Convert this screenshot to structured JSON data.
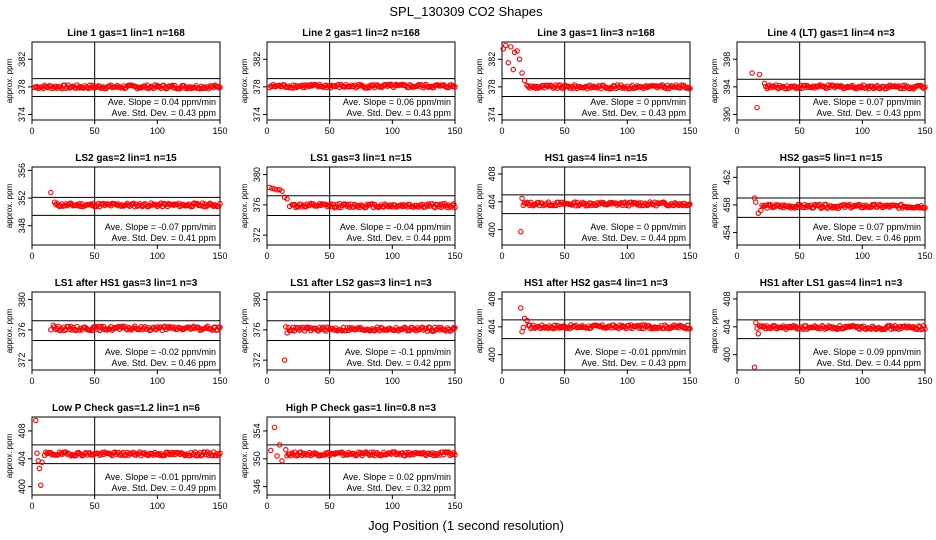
{
  "figure": {
    "title": "SPL_130309  CO2 Shapes",
    "xlabel": "Jog Position (1 second resolution)"
  },
  "chart_data": [
    {
      "type": "scatter",
      "title": "Line 1 gas=1 lin=1 n=168",
      "ylabel": "approx. ppm",
      "xlim": [
        0,
        150
      ],
      "ylim": [
        373.2,
        384.5
      ],
      "yticks": [
        374,
        378,
        382
      ],
      "xticks": [
        0,
        50,
        100,
        150
      ],
      "hlines": [
        379.2,
        376.6
      ],
      "vline": 50,
      "slope_text": "Ave. Slope = 0.04  ppm/min",
      "std_text": "Ave. Std. Dev. = 0.43  ppm",
      "points": {
        "x": [
          2,
          150
        ],
        "y": [
          377.9,
          378.0
        ]
      },
      "marker_color": "#ff0000",
      "grid": false
    },
    {
      "type": "scatter",
      "title": "Line 2 gas=1 lin=2 n=168",
      "ylabel": "approx. ppm",
      "xlim": [
        0,
        150
      ],
      "ylim": [
        373.2,
        384.5
      ],
      "yticks": [
        374,
        378,
        382
      ],
      "xticks": [
        0,
        50,
        100,
        150
      ],
      "hlines": [
        379.2,
        376.6
      ],
      "vline": 50,
      "slope_text": "Ave. Slope = 0.06  ppm/min",
      "std_text": "Ave. Std. Dev. = 0.43  ppm",
      "points": {
        "x": [
          2,
          150
        ],
        "y": [
          377.9,
          378.1
        ]
      },
      "marker_color": "#ff0000",
      "grid": false
    },
    {
      "type": "scatter",
      "title": "Line 3 gas=1 lin=3 n=168",
      "ylabel": "approx. ppm",
      "xlim": [
        0,
        150
      ],
      "ylim": [
        373.2,
        384.5
      ],
      "yticks": [
        374,
        378,
        382
      ],
      "xticks": [
        0,
        50,
        100,
        150
      ],
      "hlines": [
        379.2,
        376.6
      ],
      "vline": 50,
      "slope_text": "Ave. Slope = 0  ppm/min",
      "std_text": "Ave. Std. Dev. = 0.43  ppm",
      "points": {
        "x": [
          1,
          3,
          5,
          7,
          9,
          10,
          12,
          14,
          16,
          18,
          20,
          150
        ],
        "y": [
          383.5,
          384.0,
          381.5,
          383.8,
          380.5,
          383.0,
          383.2,
          382.0,
          380.0,
          378.9,
          378.2,
          378.0
        ]
      },
      "marker_color": "#ff0000",
      "grid": false
    },
    {
      "type": "scatter",
      "title": "Line 4 (LT) gas=1 lin=4 n=3",
      "ylabel": "approx. ppm",
      "xlim": [
        0,
        150
      ],
      "ylim": [
        389.2,
        400.5
      ],
      "yticks": [
        390,
        394,
        398
      ],
      "xticks": [
        0,
        50,
        100,
        150
      ],
      "hlines": [
        395.1,
        392.6
      ],
      "vline": 50,
      "slope_text": "Ave. Slope = 0.07  ppm/min",
      "std_text": "Ave. Std. Dev. = 0.43  ppm",
      "points": {
        "x": [
          12,
          16,
          18,
          22,
          150
        ],
        "y": [
          396.0,
          391.0,
          395.8,
          394.5,
          394.0
        ]
      },
      "marker_color": "#ff0000",
      "grid": false
    },
    {
      "type": "scatter",
      "title": "LS2 gas=2 lin=1 n=15",
      "ylabel": "approx. ppm",
      "xlim": [
        0,
        150
      ],
      "ylim": [
        345.2,
        356.5
      ],
      "yticks": [
        348,
        352,
        356
      ],
      "xticks": [
        0,
        50,
        100,
        150
      ],
      "hlines": [
        352.1,
        349.5
      ],
      "vline": 50,
      "slope_text": "Ave. Slope = -0.07  ppm/min",
      "std_text": "Ave. Std. Dev. = 0.41  ppm",
      "points": {
        "x": [
          15,
          18,
          150
        ],
        "y": [
          352.8,
          351.4,
          351.0
        ]
      },
      "marker_color": "#ff0000",
      "grid": false
    },
    {
      "type": "scatter",
      "title": "LS1 gas=3 lin=1 n=15",
      "ylabel": "approx. ppm",
      "xlim": [
        0,
        150
      ],
      "ylim": [
        370.7,
        381.0
      ],
      "yticks": [
        372,
        376,
        380
      ],
      "xticks": [
        0,
        50,
        100,
        150
      ],
      "hlines": [
        377.2,
        374.6
      ],
      "vline": 50,
      "slope_text": "Ave. Slope = -0.04  ppm/min",
      "std_text": "Ave. Std. Dev. = 0.44  ppm",
      "points": {
        "x": [
          2,
          4,
          6,
          8,
          10,
          12,
          14,
          16,
          18,
          20,
          150
        ],
        "y": [
          378.3,
          378.2,
          378.1,
          378.0,
          378.0,
          377.8,
          377.0,
          376.8,
          375.8,
          376.0,
          375.9
        ]
      },
      "marker_color": "#ff0000",
      "grid": false
    },
    {
      "type": "scatter",
      "title": "HS1 gas=4 lin=1 n=15",
      "ylabel": "approx. ppm",
      "xlim": [
        0,
        150
      ],
      "ylim": [
        397.8,
        409.0
      ],
      "yticks": [
        400,
        404,
        408
      ],
      "xticks": [
        0,
        50,
        100,
        150
      ],
      "hlines": [
        405.0,
        402.3
      ],
      "vline": 50,
      "slope_text": "Ave. Slope = 0  ppm/min",
      "std_text": "Ave. Std. Dev. = 0.44  ppm",
      "points": {
        "x": [
          15,
          16,
          17,
          150
        ],
        "y": [
          399.7,
          404.5,
          403.5,
          403.7
        ]
      },
      "marker_color": "#ff0000",
      "grid": false
    },
    {
      "type": "scatter",
      "title": "HS2 gas=5 lin=1 n=15",
      "ylabel": "approx. ppm",
      "xlim": [
        0,
        150
      ],
      "ylim": [
        452.2,
        463.5
      ],
      "yticks": [
        454,
        458,
        462
      ],
      "xticks": [
        0,
        50,
        100,
        150
      ],
      "hlines": [
        459.0,
        456.2
      ],
      "vline": 50,
      "slope_text": "Ave. Slope = 0.07  ppm/min",
      "std_text": "Ave. Std. Dev. = 0.46  ppm",
      "points": {
        "x": [
          14,
          15,
          17,
          19,
          150
        ],
        "y": [
          459.0,
          458.4,
          456.8,
          457.2,
          457.8
        ]
      },
      "marker_color": "#ff0000",
      "grid": false
    },
    {
      "type": "scatter",
      "title": "LS1 after HS1 gas=3 lin=1 n=3",
      "ylabel": "approx. ppm",
      "xlim": [
        0,
        150
      ],
      "ylim": [
        370.7,
        381.0
      ],
      "yticks": [
        372,
        376,
        380
      ],
      "xticks": [
        0,
        50,
        100,
        150
      ],
      "hlines": [
        377.2,
        374.6
      ],
      "vline": 50,
      "slope_text": "Ave. Slope = -0.02  ppm/min",
      "std_text": "Ave. Std. Dev. = 0.46  ppm",
      "points": {
        "x": [
          15,
          17,
          150
        ],
        "y": [
          376.0,
          376.6,
          376.2
        ]
      },
      "marker_color": "#ff0000",
      "grid": false
    },
    {
      "type": "scatter",
      "title": "LS1 after LS2 gas=3 lin=1 n=3",
      "ylabel": "approx. ppm",
      "xlim": [
        0,
        150
      ],
      "ylim": [
        370.7,
        381.0
      ],
      "yticks": [
        372,
        376,
        380
      ],
      "xticks": [
        0,
        50,
        100,
        150
      ],
      "hlines": [
        377.2,
        374.6
      ],
      "vline": 50,
      "slope_text": "Ave. Slope = -0.1  ppm/min",
      "std_text": "Ave. Std. Dev. = 0.42  ppm",
      "points": {
        "x": [
          14,
          15,
          16,
          150
        ],
        "y": [
          372.0,
          376.4,
          375.6,
          376.1
        ]
      },
      "marker_color": "#ff0000",
      "grid": false
    },
    {
      "type": "scatter",
      "title": "HS1 after HS2 gas=4 lin=1 n=3",
      "ylabel": "approx. ppm",
      "xlim": [
        0,
        150
      ],
      "ylim": [
        397.8,
        409.0
      ],
      "yticks": [
        400,
        404,
        408
      ],
      "xticks": [
        0,
        50,
        100,
        150
      ],
      "hlines": [
        405.0,
        402.3
      ],
      "vline": 50,
      "slope_text": "Ave. Slope = -0.01  ppm/min",
      "std_text": "Ave. Std. Dev. = 0.43  ppm",
      "points": {
        "x": [
          15,
          16,
          17,
          18,
          20,
          150
        ],
        "y": [
          406.7,
          403.3,
          403.9,
          405.2,
          404.9,
          404.0
        ]
      },
      "marker_color": "#ff0000",
      "grid": false
    },
    {
      "type": "scatter",
      "title": "HS1 after LS1 gas=4 lin=1 n=3",
      "ylabel": "approx. ppm",
      "xlim": [
        0,
        150
      ],
      "ylim": [
        397.8,
        409.0
      ],
      "yticks": [
        400,
        404,
        408
      ],
      "xticks": [
        0,
        50,
        100,
        150
      ],
      "hlines": [
        405.0,
        402.3
      ],
      "vline": 50,
      "slope_text": "Ave. Slope = 0.09  ppm/min",
      "std_text": "Ave. Std. Dev. = 0.44  ppm",
      "points": {
        "x": [
          14,
          15,
          16,
          17,
          150
        ],
        "y": [
          398.2,
          404.6,
          403.8,
          403.0,
          403.9
        ]
      },
      "marker_color": "#ff0000",
      "grid": false
    },
    {
      "type": "scatter",
      "title": "Low P Check gas=1.2 lin=1 n=6",
      "ylabel": "approx. ppm",
      "xlim": [
        0,
        150
      ],
      "ylim": [
        398.8,
        410.0
      ],
      "yticks": [
        400,
        404,
        408
      ],
      "xticks": [
        0,
        50,
        100,
        150
      ],
      "hlines": [
        406.0,
        403.3
      ],
      "vline": 50,
      "slope_text": "Ave. Slope = -0.01  ppm/min",
      "std_text": "Ave. Std. Dev. = 0.49  ppm",
      "points": {
        "x": [
          3,
          4,
          5,
          6,
          7,
          8,
          10,
          150
        ],
        "y": [
          409.5,
          404.8,
          403.7,
          402.6,
          400.2,
          403.5,
          404.5,
          404.7
        ]
      },
      "marker_color": "#ff0000",
      "grid": false
    },
    {
      "type": "scatter",
      "title": "High P Check gas=1 lin=0.8 n=3",
      "ylabel": "approx. ppm",
      "xlim": [
        0,
        150
      ],
      "ylim": [
        344.8,
        356.0
      ],
      "yticks": [
        346,
        350,
        354
      ],
      "xticks": [
        0,
        50,
        100,
        150
      ],
      "hlines": [
        352.0,
        349.3
      ],
      "vline": 50,
      "slope_text": "Ave. Slope = 0.02  ppm/min",
      "std_text": "Ave. Std. Dev. = 0.32  ppm",
      "points": {
        "x": [
          3,
          6,
          8,
          10,
          12,
          15,
          150
        ],
        "y": [
          351.2,
          354.5,
          350.4,
          352.0,
          349.7,
          351.3,
          350.7
        ]
      },
      "marker_color": "#ff0000",
      "grid": false
    }
  ]
}
